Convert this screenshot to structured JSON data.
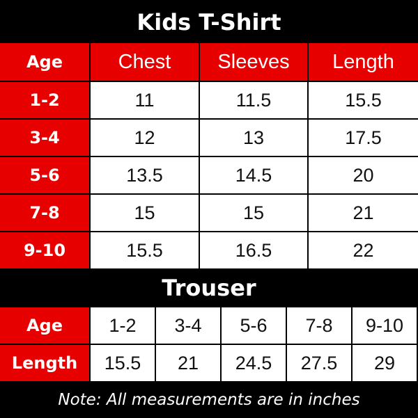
{
  "tshirt": {
    "title": "Kids T-Shirt",
    "headers": [
      "Age",
      "Chest",
      "Sleeves",
      "Length"
    ],
    "rows": [
      [
        "1-2",
        "11",
        "11.5",
        "15.5"
      ],
      [
        "3-4",
        "12",
        "13",
        "17.5"
      ],
      [
        "5-6",
        "13.5",
        "14.5",
        "20"
      ],
      [
        "7-8",
        "15",
        "15",
        "21"
      ],
      [
        "9-10",
        "15.5",
        "16.5",
        "22"
      ]
    ]
  },
  "trouser": {
    "title": "Trouser",
    "rows": [
      [
        "Age",
        "1-2",
        "3-4",
        "5-6",
        "7-8",
        "9-10"
      ],
      [
        "Length",
        "15.5",
        "21",
        "24.5",
        "27.5",
        "29"
      ]
    ]
  },
  "note": "Note: All measurements are in inches",
  "colors": {
    "accent": "#e60000",
    "background": "#000000"
  }
}
